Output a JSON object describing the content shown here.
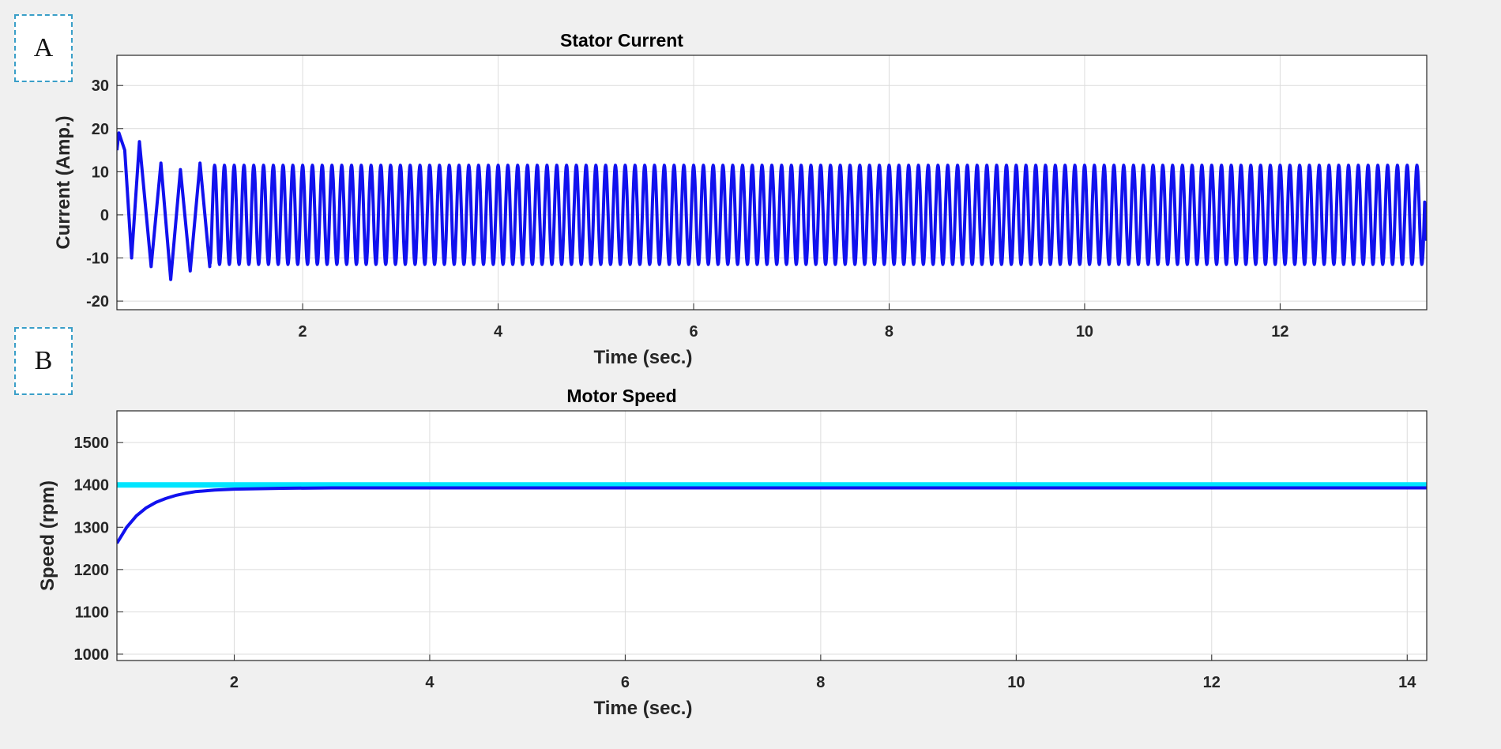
{
  "colors": {
    "background": "#f0f0f0",
    "axes_background": "#ffffff",
    "grid": "#dcdcdc",
    "current_line": "#1111ee",
    "speed_line": "#1111ee",
    "reference_line": "#00e5ff",
    "label_box_border": "#3a9fc8"
  },
  "panels": [
    {
      "label": "A"
    },
    {
      "label": "B"
    }
  ],
  "chart_data": [
    {
      "type": "line",
      "title": "Stator Current",
      "xlabel": "Time (sec.)",
      "ylabel": "Current  (Amp.)",
      "xlim": [
        0.1,
        13.5
      ],
      "ylim": [
        -22,
        37
      ],
      "xticks": [
        2,
        4,
        6,
        8,
        10,
        12
      ],
      "yticks": [
        -20,
        -10,
        0,
        10,
        20,
        30
      ],
      "grid": true,
      "series": [
        {
          "color": "#1111ee",
          "waveform": "sinusoid",
          "steady_amplitude": 11.5,
          "frequency_hz": 10,
          "transient_peaks": [
            [
              0.12,
              19
            ],
            [
              0.18,
              15
            ],
            [
              0.25,
              -10
            ],
            [
              0.33,
              17
            ],
            [
              0.45,
              -12
            ],
            [
              0.55,
              12
            ],
            [
              0.65,
              -15
            ],
            [
              0.75,
              10.5
            ],
            [
              0.85,
              -13
            ],
            [
              0.95,
              12
            ],
            [
              1.05,
              -12
            ]
          ],
          "end_value": -6
        }
      ]
    },
    {
      "type": "line",
      "title": "Motor Speed",
      "xlabel": "Time (sec.)",
      "ylabel": "Speed (rpm)",
      "xlim": [
        0.8,
        14.2
      ],
      "ylim": [
        985,
        1575
      ],
      "xticks": [
        2,
        4,
        6,
        8,
        10,
        12,
        14
      ],
      "yticks": [
        1000,
        1100,
        1200,
        1300,
        1400,
        1500
      ],
      "grid": true,
      "series": [
        {
          "color": "#00e5ff",
          "x": [
            0.8,
            14.2
          ],
          "y": [
            1400,
            1400
          ]
        },
        {
          "color": "#1111ee",
          "x": [
            0.8,
            0.9,
            1.0,
            1.1,
            1.2,
            1.3,
            1.4,
            1.5,
            1.6,
            1.8,
            2.0,
            2.5,
            3.0,
            5.0,
            8.0,
            11.0,
            14.2
          ],
          "y": [
            1262,
            1300,
            1327,
            1346,
            1359,
            1368,
            1375,
            1380,
            1384,
            1388,
            1390,
            1392,
            1393,
            1393,
            1393,
            1393,
            1393
          ]
        }
      ]
    }
  ]
}
